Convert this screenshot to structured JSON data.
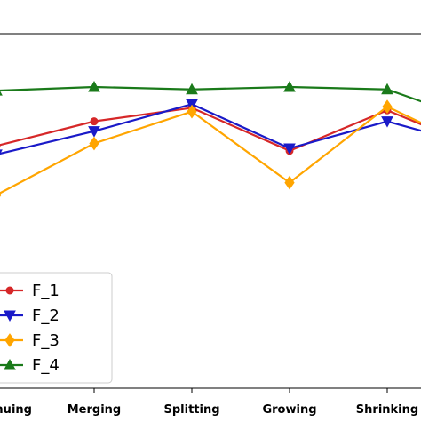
{
  "chart_data": {
    "type": "line",
    "title": "",
    "xlabel": "",
    "ylabel": "",
    "categories": [
      "Continuing",
      "Merging",
      "Splitting",
      "Growing",
      "Shrinking",
      ""
    ],
    "ylim": [
      0,
      1
    ],
    "grid": false,
    "legend_position": "lower-left",
    "series": [
      {
        "name": "F_1",
        "color": "#d62728",
        "marker": "circle",
        "values": [
          0.76,
          0.86,
          0.915,
          0.74,
          0.905,
          0.74
        ]
      },
      {
        "name": "F_2",
        "color": "#1a1ac8",
        "marker": "triangle-down",
        "values": [
          0.725,
          0.82,
          0.93,
          0.75,
          0.86,
          0.75
        ]
      },
      {
        "name": "F_3",
        "color": "#ffa500",
        "marker": "diamond",
        "values": [
          0.56,
          0.77,
          0.9,
          0.61,
          0.92,
          0.73
        ]
      },
      {
        "name": "F_4",
        "color": "#1a7a1a",
        "marker": "triangle-up",
        "values": [
          0.985,
          1.0,
          0.99,
          1.0,
          0.99,
          0.85
        ]
      }
    ]
  }
}
